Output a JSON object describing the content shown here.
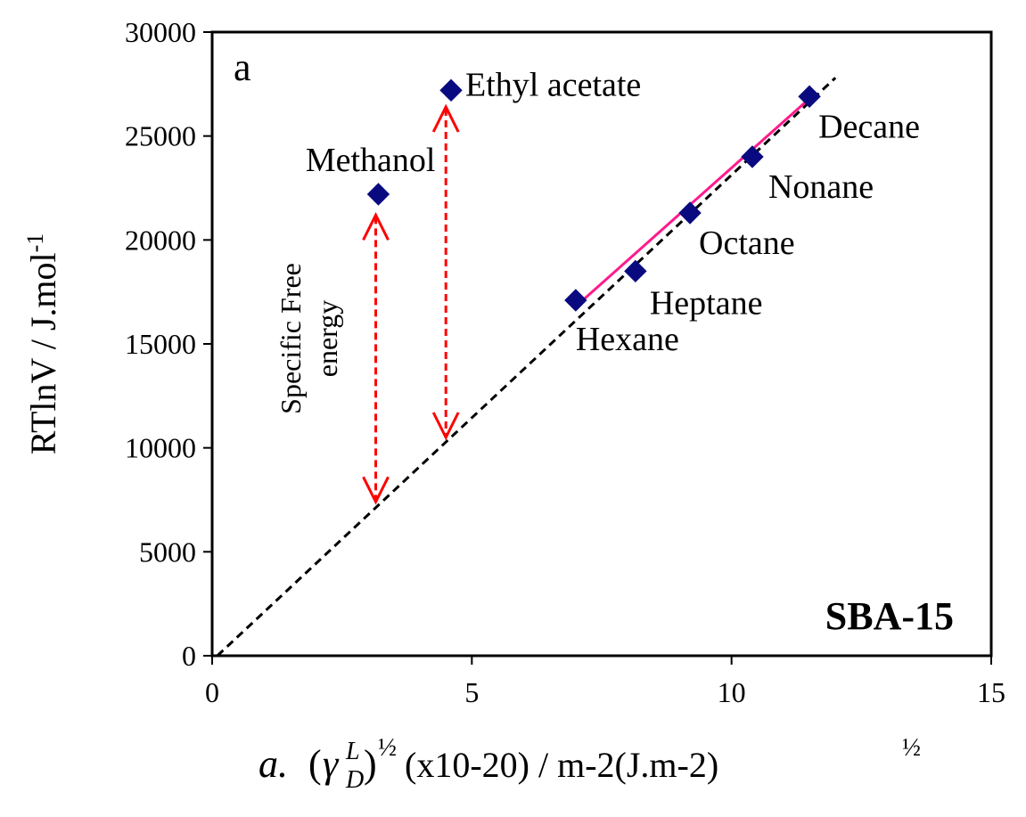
{
  "chart_data": {
    "type": "scatter",
    "panel_label": "a",
    "annotation_box": "SBA-15",
    "ylabel": "RTlnV / J.mol-1",
    "ylabel_parts": {
      "main": "RTlnV / J.mol",
      "sup": "-1"
    },
    "xlabel_parts": {
      "a": "a.",
      "gamma": "γ",
      "gamma_sup": "L",
      "gamma_sub": "D",
      "half": "½",
      "rest": "(x10-20) / m-2(J.m-2)"
    },
    "xlim": [
      0,
      15
    ],
    "ylim": [
      0,
      30000
    ],
    "xticks": [
      "0",
      "5",
      "10",
      "15"
    ],
    "yticks": [
      "0",
      "5000",
      "10000",
      "15000",
      "20000",
      "25000",
      "30000"
    ],
    "xtick_values": [
      0,
      5,
      10,
      15
    ],
    "ytick_values": [
      0,
      5000,
      10000,
      15000,
      20000,
      25000,
      30000
    ],
    "grid": false,
    "points": [
      {
        "name": "Hexane",
        "x": 7.0,
        "y": 17100,
        "group": "alkane"
      },
      {
        "name": "Heptane",
        "x": 8.15,
        "y": 18500,
        "group": "alkane"
      },
      {
        "name": "Octane",
        "x": 9.2,
        "y": 21300,
        "group": "alkane"
      },
      {
        "name": "Nonane",
        "x": 10.4,
        "y": 24000,
        "group": "alkane"
      },
      {
        "name": "Decane",
        "x": 11.5,
        "y": 26900,
        "group": "alkane"
      },
      {
        "name": "Methanol",
        "x": 3.2,
        "y": 22200,
        "group": "polar"
      },
      {
        "name": "Ethyl acetate",
        "x": 4.6,
        "y": 27200,
        "group": "polar"
      }
    ],
    "reference_line": {
      "style": "dashed",
      "color": "#000000",
      "x": [
        0.1,
        12.0
      ],
      "y": [
        0,
        27800
      ]
    },
    "fit_line": {
      "style": "solid",
      "color": "#ff1a8c",
      "x": [
        7.0,
        11.5
      ],
      "y": [
        16800,
        26800
      ]
    },
    "arrows": [
      {
        "x": 3.15,
        "y_from": 7400,
        "y_to": 21200
      },
      {
        "x": 4.5,
        "y_from": 10500,
        "y_to": 26400
      }
    ],
    "arrow_label": [
      "Specific Free",
      "energy"
    ],
    "colors": {
      "marker": "#0a0a80",
      "arrow": "#ff0000",
      "fit": "#ff1a8c",
      "reference": "#000000"
    }
  }
}
